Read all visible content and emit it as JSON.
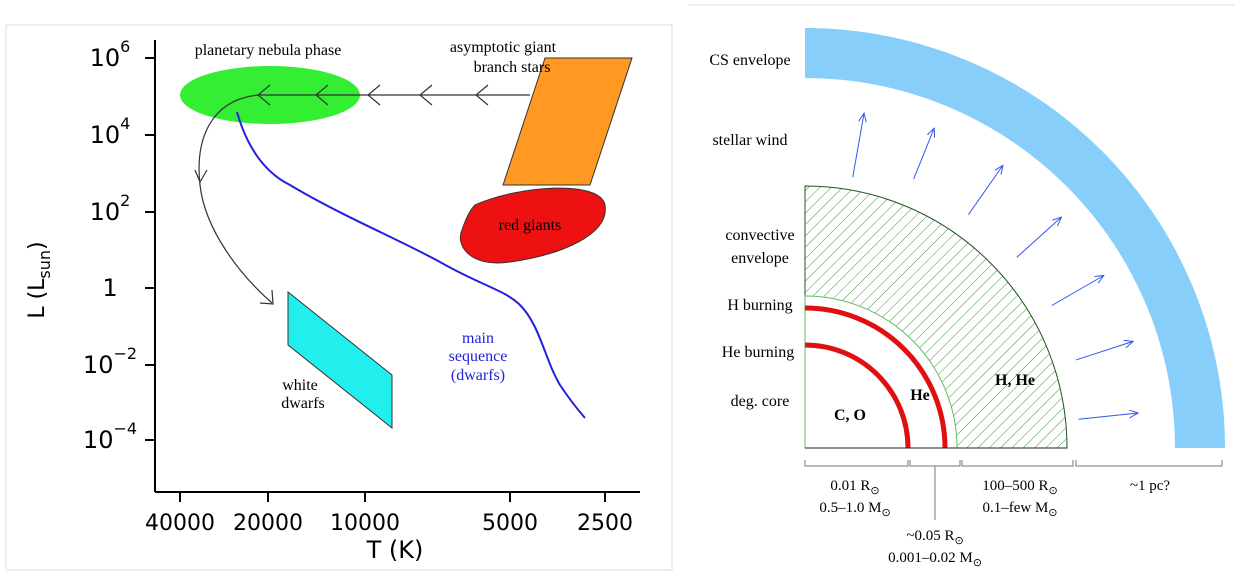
{
  "hr_diagram": {
    "y_axis": {
      "label": "L (L",
      "label_sub": "sun",
      "label_end": ")",
      "ticks": [
        {
          "base": "10",
          "exp": "6"
        },
        {
          "base": "10",
          "exp": "4"
        },
        {
          "base": "10",
          "exp": "2"
        },
        {
          "base": "1",
          "exp": ""
        },
        {
          "base": "10",
          "exp": "−2"
        },
        {
          "base": "10",
          "exp": "−4"
        }
      ]
    },
    "x_axis": {
      "label": "T (K)",
      "ticks": [
        "40000",
        "20000",
        "10000",
        "5000",
        "2500"
      ]
    },
    "regions": {
      "planetary_nebula": "planetary nebula phase",
      "agb": [
        "asymptotic giant",
        "branch stars"
      ],
      "red_giants": "red giants",
      "main_sequence": [
        "main",
        "sequence",
        "(dwarfs)"
      ],
      "white_dwarfs": [
        "white",
        "dwarfs"
      ]
    }
  },
  "structure_diagram": {
    "layers": [
      "CS envelope",
      "stellar wind",
      "convective",
      "envelope",
      "H burning",
      "He burning",
      "deg. core"
    ],
    "zones": [
      "C, O",
      "He",
      "H, He"
    ],
    "scales": [
      {
        "text": "0.01 R",
        "sub": "⊙"
      },
      {
        "text": "0.5–1.0 M",
        "sub": "⊙"
      },
      {
        "text": "100–500 R",
        "sub": "⊙"
      },
      {
        "text": "0.1–few M",
        "sub": "⊙"
      },
      {
        "text": "~1 pc?",
        "sub": ""
      },
      {
        "text": "~0.05 R",
        "sub": "⊙"
      },
      {
        "text": "0.001–0.02 M",
        "sub": "⊙"
      }
    ]
  }
}
